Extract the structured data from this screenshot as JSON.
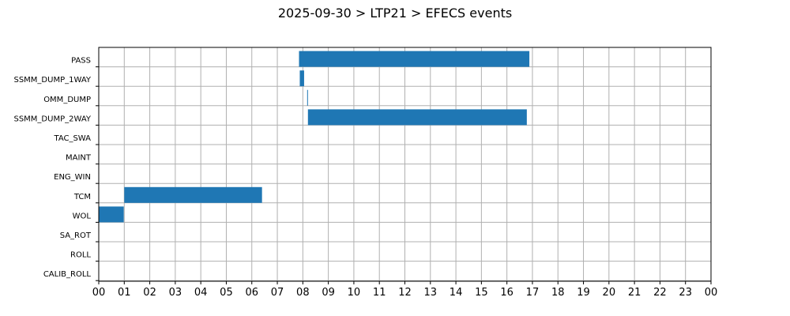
{
  "chart_data": {
    "type": "bar",
    "orientation": "horizontal-timeline",
    "title": "2025-09-30 > LTP21 > EFECS events",
    "xlabel": "",
    "ylabel": "",
    "grid": true,
    "bar_color": "#1f77b4",
    "xlim": [
      0,
      24
    ],
    "x_tick_labels": [
      "00",
      "01",
      "02",
      "03",
      "04",
      "05",
      "06",
      "07",
      "08",
      "09",
      "10",
      "11",
      "12",
      "13",
      "14",
      "15",
      "16",
      "17",
      "18",
      "19",
      "20",
      "21",
      "22",
      "23",
      "00"
    ],
    "categories": [
      "PASS",
      "SSMM_DUMP_1WAY",
      "OMM_DUMP",
      "SSMM_DUMP_2WAY",
      "TAC_SWA",
      "MAINT",
      "ENG_WIN",
      "TCM",
      "WOL",
      "SA_ROT",
      "ROLL",
      "CALIB_ROLL"
    ],
    "events": [
      {
        "category": "PASS",
        "start": 7.85,
        "end": 16.88
      },
      {
        "category": "SSMM_DUMP_1WAY",
        "start": 7.88,
        "end": 8.05
      },
      {
        "category": "OMM_DUMP",
        "start": 8.17,
        "end": 8.2
      },
      {
        "category": "SSMM_DUMP_2WAY",
        "start": 8.2,
        "end": 16.78
      },
      {
        "category": "TCM",
        "start": 1.0,
        "end": 6.4
      },
      {
        "category": "WOL",
        "start": 0.0,
        "end": 0.98
      }
    ]
  }
}
